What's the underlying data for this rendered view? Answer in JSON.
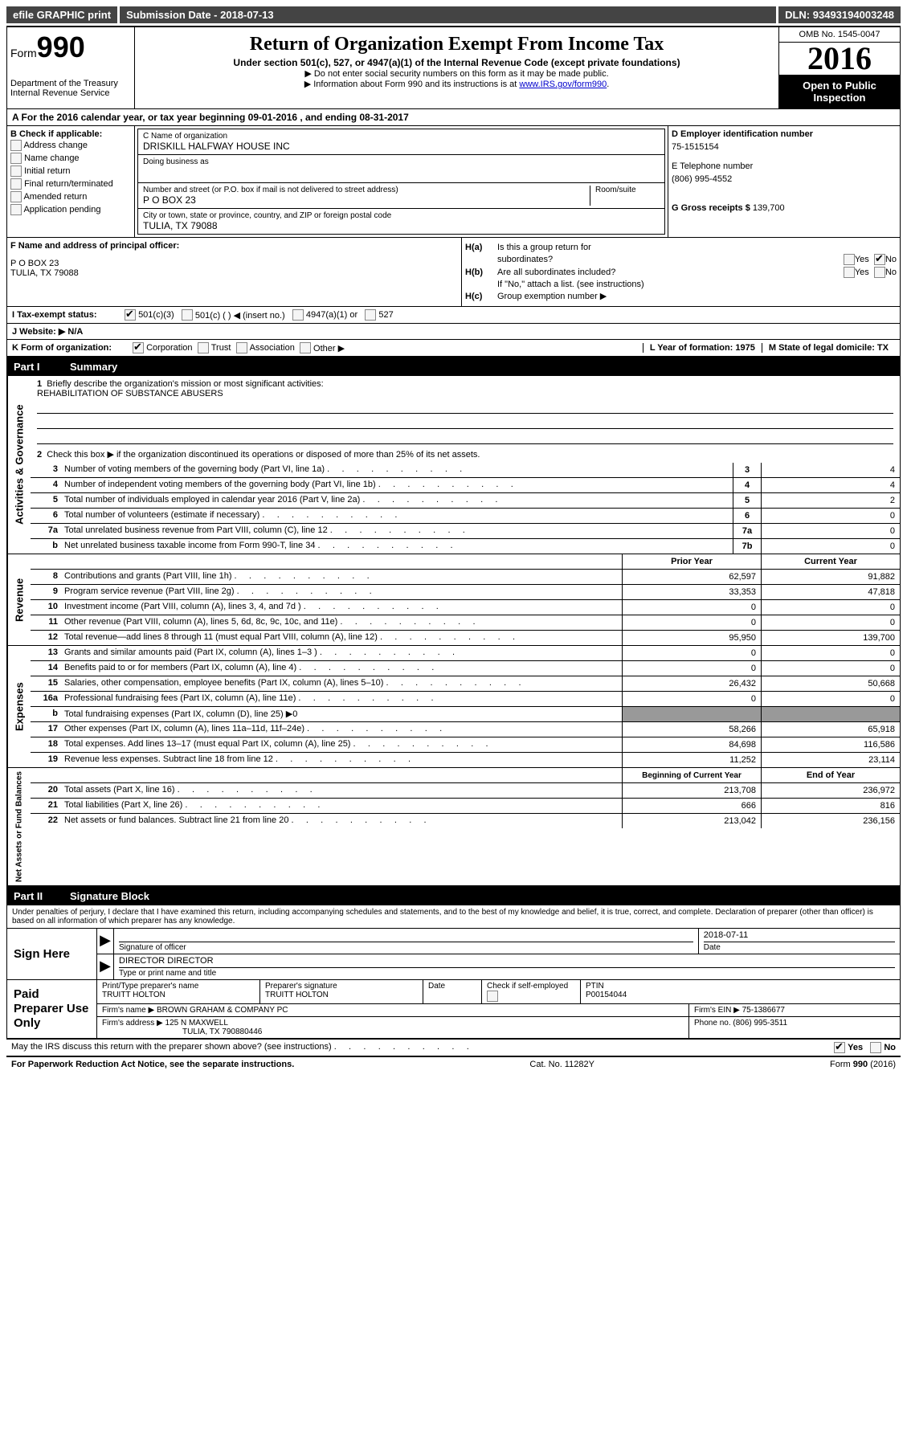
{
  "topbar": {
    "efile": "efile GRAPHIC print",
    "submission_label": "Submission Date - ",
    "submission_date": "2018-07-13",
    "dln_label": "DLN: ",
    "dln": "93493194003248"
  },
  "header": {
    "form_word": "Form",
    "form_num": "990",
    "dept1": "Department of the Treasury",
    "dept2": "Internal Revenue Service",
    "title": "Return of Organization Exempt From Income Tax",
    "sub": "Under section 501(c), 527, or 4947(a)(1) of the Internal Revenue Code (except private foundations)",
    "note1": "▶ Do not enter social security numbers on this form as it may be made public.",
    "note2": "▶ Information about Form 990 and its instructions is at ",
    "link": "www.IRS.gov/form990",
    "omb": "OMB No. 1545-0047",
    "year": "2016",
    "inspection": "Open to Public Inspection"
  },
  "secA": "A   For the 2016 calendar year, or tax year beginning 09-01-2016   , and ending 08-31-2017",
  "secB": {
    "title": "B Check if applicable:",
    "opts": [
      "Address change",
      "Name change",
      "Initial return",
      "Final return/terminated",
      "Amended return",
      "Application pending"
    ]
  },
  "secC": {
    "name_label": "C Name of organization",
    "name": "DRISKILL HALFWAY HOUSE INC",
    "dba_label": "Doing business as",
    "street_label": "Number and street (or P.O. box if mail is not delivered to street address)",
    "room_label": "Room/suite",
    "street": "P O BOX 23",
    "city_label": "City or town, state or province, country, and ZIP or foreign postal code",
    "city": "TULIA, TX  79088"
  },
  "secD": {
    "ein_label": "D Employer identification number",
    "ein": "75-1515154",
    "tel_label": "E Telephone number",
    "tel": "(806) 995-4552",
    "gross_label": "G Gross receipts $ ",
    "gross": "139,700"
  },
  "secF": {
    "label": "F Name and address of principal officer:",
    "line1": "P O BOX 23",
    "line2": "TULIA, TX  79088"
  },
  "secH": {
    "a": "Is this a group return for",
    "a2": "subordinates?",
    "b": "Are all subordinates included?",
    "b_note": "If \"No,\" attach a list. (see instructions)",
    "c": "Group exemption number ▶",
    "yes": "Yes",
    "no": "No"
  },
  "secI": {
    "label": "I   Tax-exempt status:",
    "o1": "501(c)(3)",
    "o2": "501(c) (    ) ◀ (insert no.)",
    "o3": "4947(a)(1) or",
    "o4": "527"
  },
  "secJ": "J   Website: ▶  N/A",
  "secK": {
    "label": "K Form of organization:",
    "opts": [
      "Corporation",
      "Trust",
      "Association",
      "Other ▶"
    ],
    "L": "L Year of formation: 1975",
    "M": "M State of legal domicile: TX"
  },
  "part1": {
    "num": "Part I",
    "title": "Summary"
  },
  "gov": {
    "vert": "Activities & Governance",
    "l1": "Briefly describe the organization's mission or most significant activities:",
    "l1v": "REHABILITATION OF SUBSTANCE ABUSERS",
    "l2": "Check this box ▶        if the organization discontinued its operations or disposed of more than 25% of its net assets.",
    "rows": [
      {
        "n": "3",
        "t": "Number of voting members of the governing body (Part VI, line 1a)",
        "c": "3",
        "v": "4"
      },
      {
        "n": "4",
        "t": "Number of independent voting members of the governing body (Part VI, line 1b)",
        "c": "4",
        "v": "4"
      },
      {
        "n": "5",
        "t": "Total number of individuals employed in calendar year 2016 (Part V, line 2a)",
        "c": "5",
        "v": "2"
      },
      {
        "n": "6",
        "t": "Total number of volunteers (estimate if necessary)",
        "c": "6",
        "v": "0"
      },
      {
        "n": "7a",
        "t": "Total unrelated business revenue from Part VIII, column (C), line 12",
        "c": "7a",
        "v": "0"
      },
      {
        "n": "b",
        "t": "Net unrelated business taxable income from Form 990-T, line 34",
        "c": "7b",
        "v": "0"
      }
    ]
  },
  "rev": {
    "vert": "Revenue",
    "h1": "Prior Year",
    "h2": "Current Year",
    "rows": [
      {
        "n": "8",
        "t": "Contributions and grants (Part VIII, line 1h)",
        "p": "62,597",
        "c": "91,882"
      },
      {
        "n": "9",
        "t": "Program service revenue (Part VIII, line 2g)",
        "p": "33,353",
        "c": "47,818"
      },
      {
        "n": "10",
        "t": "Investment income (Part VIII, column (A), lines 3, 4, and 7d )",
        "p": "0",
        "c": "0"
      },
      {
        "n": "11",
        "t": "Other revenue (Part VIII, column (A), lines 5, 6d, 8c, 9c, 10c, and 11e)",
        "p": "0",
        "c": "0"
      },
      {
        "n": "12",
        "t": "Total revenue—add lines 8 through 11 (must equal Part VIII, column (A), line 12)",
        "p": "95,950",
        "c": "139,700"
      }
    ]
  },
  "exp": {
    "vert": "Expenses",
    "rows": [
      {
        "n": "13",
        "t": "Grants and similar amounts paid (Part IX, column (A), lines 1–3 )",
        "p": "0",
        "c": "0"
      },
      {
        "n": "14",
        "t": "Benefits paid to or for members (Part IX, column (A), line 4)",
        "p": "0",
        "c": "0"
      },
      {
        "n": "15",
        "t": "Salaries, other compensation, employee benefits (Part IX, column (A), lines 5–10)",
        "p": "26,432",
        "c": "50,668"
      },
      {
        "n": "16a",
        "t": "Professional fundraising fees (Part IX, column (A), line 11e)",
        "p": "0",
        "c": "0"
      },
      {
        "n": "b",
        "t": "Total fundraising expenses (Part IX, column (D), line 25) ▶0",
        "p": "",
        "c": "",
        "grey": true
      },
      {
        "n": "17",
        "t": "Other expenses (Part IX, column (A), lines 11a–11d, 11f–24e)",
        "p": "58,266",
        "c": "65,918"
      },
      {
        "n": "18",
        "t": "Total expenses. Add lines 13–17 (must equal Part IX, column (A), line 25)",
        "p": "84,698",
        "c": "116,586"
      },
      {
        "n": "19",
        "t": "Revenue less expenses. Subtract line 18 from line 12",
        "p": "11,252",
        "c": "23,114"
      }
    ]
  },
  "net": {
    "vert": "Net Assets or Fund Balances",
    "h1": "Beginning of Current Year",
    "h2": "End of Year",
    "rows": [
      {
        "n": "20",
        "t": "Total assets (Part X, line 16)",
        "p": "213,708",
        "c": "236,972"
      },
      {
        "n": "21",
        "t": "Total liabilities (Part X, line 26)",
        "p": "666",
        "c": "816"
      },
      {
        "n": "22",
        "t": "Net assets or fund balances. Subtract line 21 from line 20",
        "p": "213,042",
        "c": "236,156"
      }
    ]
  },
  "part2": {
    "num": "Part II",
    "title": "Signature Block"
  },
  "perjury": "Under penalties of perjury, I declare that I have examined this return, including accompanying schedules and statements, and to the best of my knowledge and belief, it is true, correct, and complete. Declaration of preparer (other than officer) is based on all information of which preparer has any knowledge.",
  "sign": {
    "left": "Sign Here",
    "sig_label": "Signature of officer",
    "date": "2018-07-11",
    "date_label": "Date",
    "name": "DIRECTOR DIRECTOR",
    "name_label": "Type or print name and title"
  },
  "prep": {
    "left": "Paid Preparer Use Only",
    "name_label": "Print/Type preparer's name",
    "name": "TRUITT HOLTON",
    "sig_label": "Preparer's signature",
    "sig": "TRUITT HOLTON",
    "date_label": "Date",
    "check_label": "Check          if self-employed",
    "ptin_label": "PTIN",
    "ptin": "P00154044",
    "firm_label": "Firm's name      ▶ ",
    "firm": "BROWN GRAHAM & COMPANY PC",
    "ein_label": "Firm's EIN ▶ ",
    "ein": "75-1386677",
    "addr_label": "Firm's address ▶ ",
    "addr1": "125 N MAXWELL",
    "addr2": "TULIA, TX  790880446",
    "phone_label": "Phone no. ",
    "phone": "(806) 995-3511"
  },
  "footer": {
    "discuss": "May the IRS discuss this return with the preparer shown above? (see instructions)",
    "yes": "Yes",
    "no": "No",
    "paperwork": "For Paperwork Reduction Act Notice, see the separate instructions.",
    "cat": "Cat. No. 11282Y",
    "form": "Form 990 (2016)"
  }
}
